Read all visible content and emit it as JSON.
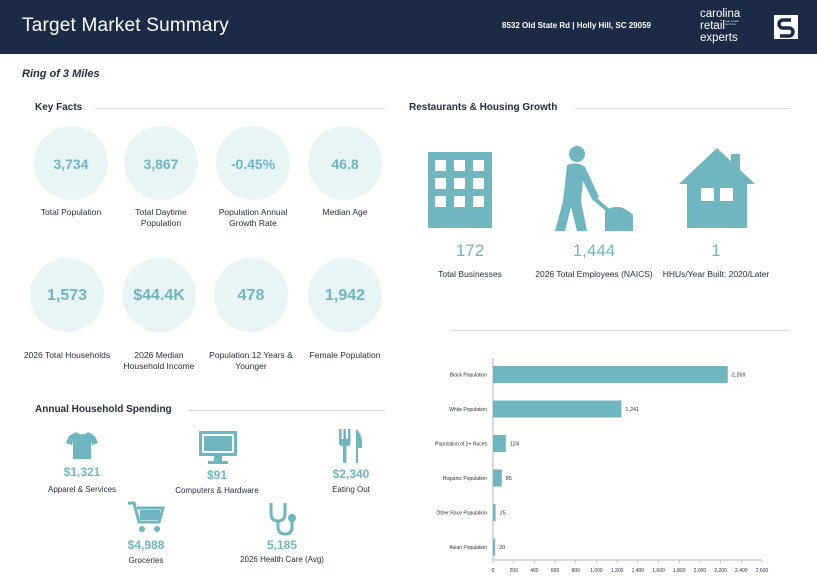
{
  "header": {
    "title": "Target Market Summary",
    "address": "8532 Old State Rd | Holly Hill, SC 29059",
    "brand_line1": "carolina",
    "brand_line2": "retail",
    "brand_line3": "experts",
    "brand_tagline": "real estate services",
    "logo_letter": "S"
  },
  "ring_label": "Ring of 3 Miles",
  "key_facts": {
    "title": "Key Facts",
    "items": [
      {
        "value": "3,734",
        "label": "Total Population"
      },
      {
        "value": "3,867",
        "label": "Total Daytime Population"
      },
      {
        "value": "-0.45%",
        "label": "Population Annual Growth Rate"
      },
      {
        "value": "46.8",
        "label": "Median Age"
      },
      {
        "value": "1,573",
        "label": "2026 Total Households"
      },
      {
        "value": "$44.4K",
        "label": "2026 Median Household Income"
      },
      {
        "value": "478",
        "label": "Population 12 Years & Younger"
      },
      {
        "value": "1,942",
        "label": "Female Population"
      }
    ]
  },
  "restaurants": {
    "title": "Restaurants & Housing Growth",
    "items": [
      {
        "icon": "building-icon",
        "value": "172",
        "label": "Total Businesses"
      },
      {
        "icon": "worker-icon",
        "value": "1,444",
        "label": "2026 Total Employees (NAICS)"
      },
      {
        "icon": "house-icon",
        "value": "1",
        "label": "HHUs/Year Built: 2020/Later"
      }
    ]
  },
  "spending": {
    "title": "Annual Household Spending",
    "items": [
      {
        "icon": "shirt-icon",
        "value": "$1,321",
        "label": "Apparel & Services"
      },
      {
        "icon": "monitor-icon",
        "value": "$91",
        "label": "Computers & Hardware"
      },
      {
        "icon": "fork-knife-icon",
        "value": "$2,340",
        "label": "Eating Out"
      },
      {
        "icon": "cart-icon",
        "value": "$4,988",
        "label": "Groceries"
      },
      {
        "icon": "stethoscope-icon",
        "value": "5,185",
        "label": "2026 Health Care (Avg)"
      }
    ]
  },
  "colors": {
    "navy": "#1b2b45",
    "teal": "#6fb6c0",
    "circle": "#e9f4f7"
  },
  "chart_data": {
    "type": "bar",
    "orientation": "horizontal",
    "categories": [
      "Black Population",
      "White Population",
      "Population of 2+ Races",
      "Hispanic Population",
      "Other Race Population",
      "Asian Population"
    ],
    "values": [
      2269,
      1241,
      124,
      85,
      25,
      20
    ],
    "value_labels": [
      "2,269",
      "1,241",
      "124",
      "85",
      "25",
      "20"
    ],
    "xlim": [
      0,
      2600
    ],
    "xticks": [
      "0",
      "200",
      "400",
      "600",
      "800",
      "1,000",
      "1,200",
      "1,400",
      "1,600",
      "1,800",
      "2,000",
      "2,200",
      "2,400",
      "2,600"
    ],
    "color": "#6fb6c0",
    "grid": false,
    "title": "",
    "xlabel": "",
    "ylabel": ""
  }
}
